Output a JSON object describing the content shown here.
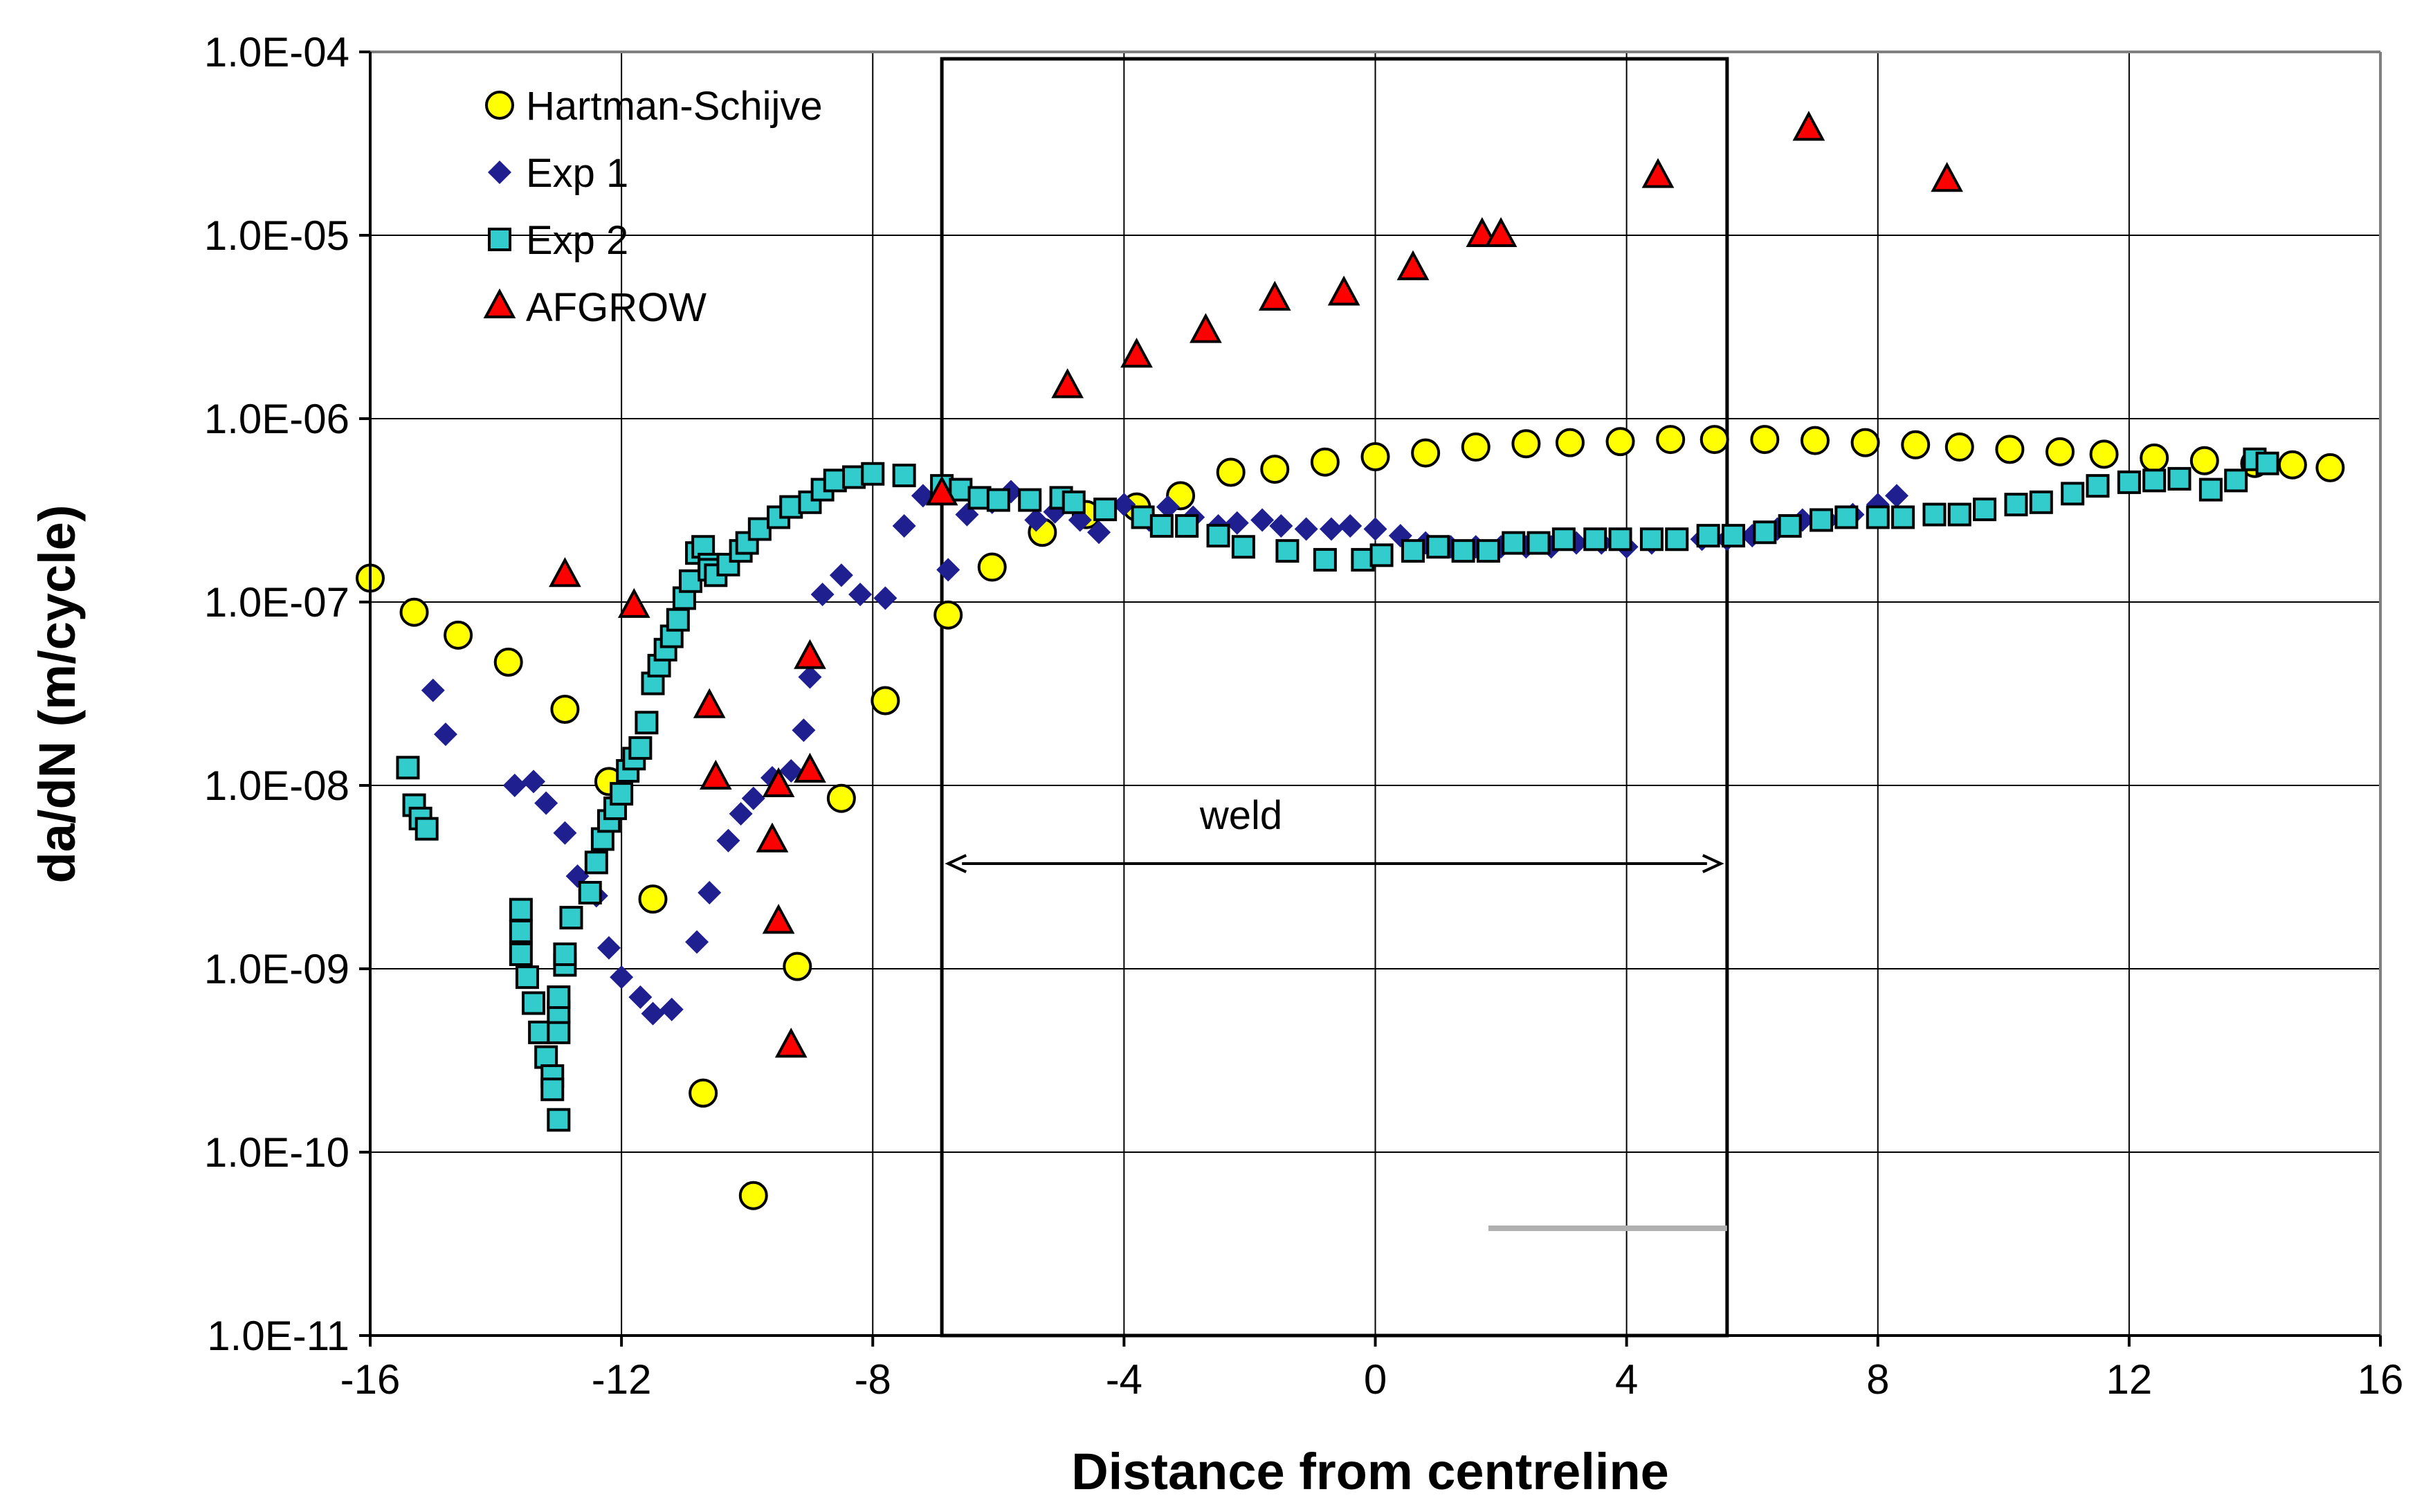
{
  "chart_data": {
    "type": "scatter",
    "title": "",
    "xlabel": "Distance from centreline",
    "ylabel": "da/dN (m/cycle)",
    "xlim": [
      -16,
      16
    ],
    "ylim": [
      1e-11,
      0.0001
    ],
    "yscale": "log",
    "grid": true,
    "legend_position": "top-left",
    "x_ticks": [
      "-16",
      "-12",
      "-8",
      "-4",
      "0",
      "4",
      "8",
      "12",
      "16"
    ],
    "y_ticks": [
      "1.0E-11",
      "1.0E-10",
      "1.0E-09",
      "1.0E-08",
      "1.0E-07",
      "1.0E-06",
      "1.0E-05",
      "1.0E-04"
    ],
    "annotations": {
      "weld_label": "weld",
      "weld_x_range": [
        -6.8,
        5.5
      ],
      "weld_box_x_range": [
        -6.9,
        5.6
      ]
    },
    "series": [
      {
        "name": "Hartman-Schijve",
        "marker": "circle",
        "color": "#ffff00",
        "x": [
          -16,
          -15.3,
          -14.6,
          -13.8,
          -12.9,
          -12.2,
          -11.5,
          -10.7,
          -9.9,
          -9.2,
          -8.5,
          -7.8,
          -6.8,
          -6.1,
          -5.3,
          -4.6,
          -3.8,
          -3.1,
          -2.3,
          -1.6,
          -0.8,
          0,
          0.8,
          1.6,
          2.4,
          3.1,
          3.9,
          4.7,
          5.4,
          6.2,
          7,
          7.8,
          8.6,
          9.3,
          10.1,
          10.9,
          11.6,
          12.4,
          13.2,
          14,
          14.6,
          15.2
        ],
        "y": [
          1.35e-07,
          8.8e-08,
          6.6e-08,
          4.7e-08,
          2.6e-08,
          1.05e-08,
          2.4e-09,
          2.1e-10,
          5.8e-11,
          1.03e-09,
          8.5e-09,
          2.9e-08,
          8.5e-08,
          1.55e-07,
          2.4e-07,
          3e-07,
          3.3e-07,
          3.8e-07,
          5.1e-07,
          5.3e-07,
          5.8e-07,
          6.2e-07,
          6.5e-07,
          7e-07,
          7.3e-07,
          7.4e-07,
          7.5e-07,
          7.7e-07,
          7.7e-07,
          7.7e-07,
          7.6e-07,
          7.4e-07,
          7.2e-07,
          7e-07,
          6.8e-07,
          6.6e-07,
          6.4e-07,
          6.1e-07,
          5.9e-07,
          5.7e-07,
          5.6e-07,
          5.4e-07
        ]
      },
      {
        "name": "Exp 1",
        "marker": "diamond",
        "color": "#1f1f8f",
        "x": [
          -15,
          -14.8,
          -13.7,
          -13.4,
          -13.2,
          -12.9,
          -12.7,
          -12.4,
          -12.2,
          -12,
          -11.7,
          -11.5,
          -11.2,
          -10.8,
          -10.6,
          -10.3,
          -10.1,
          -9.9,
          -9.6,
          -9.3,
          -9.1,
          -9,
          -8.8,
          -8.5,
          -8.2,
          -7.8,
          -7.5,
          -7.2,
          -6.8,
          -6.5,
          -6.1,
          -5.8,
          -5.4,
          -5.1,
          -4.7,
          -4.4,
          -4.0,
          -3.6,
          -3.3,
          -2.9,
          -2.5,
          -2.2,
          -1.8,
          -1.5,
          -1.1,
          -0.7,
          -0.4,
          0,
          0.4,
          0.8,
          1.2,
          1.6,
          2.0,
          2.4,
          2.8,
          3.2,
          3.6,
          4.0,
          4.4,
          4.8,
          5.2,
          5.6,
          6.0,
          6.4,
          6.8,
          7.2,
          7.6,
          8.0,
          8.3
        ],
        "y": [
          3.3e-08,
          1.9e-08,
          1e-08,
          1.05e-08,
          8e-09,
          5.5e-09,
          3.2e-09,
          2.5e-09,
          1.3e-09,
          9e-10,
          7e-10,
          5.7e-10,
          6e-10,
          1.4e-09,
          2.6e-09,
          5e-09,
          7e-09,
          8.5e-09,
          1.1e-08,
          1.2e-08,
          2e-08,
          3.9e-08,
          1.1e-07,
          1.4e-07,
          1.1e-07,
          1.05e-07,
          2.6e-07,
          3.8e-07,
          1.5e-07,
          3e-07,
          3.5e-07,
          4e-07,
          2.8e-07,
          3.1e-07,
          2.8e-07,
          2.4e-07,
          3.4e-07,
          2.8e-07,
          3.3e-07,
          2.9e-07,
          2.6e-07,
          2.7e-07,
          2.8e-07,
          2.6e-07,
          2.5e-07,
          2.5e-07,
          2.6e-07,
          2.5e-07,
          2.3e-07,
          2.1e-07,
          2e-07,
          2e-07,
          2e-07,
          2e-07,
          2e-07,
          2.1e-07,
          2.1e-07,
          2e-07,
          2.1e-07,
          2.2e-07,
          2.2e-07,
          2.2e-07,
          2.3e-07,
          2.5e-07,
          2.8e-07,
          2.8e-07,
          3e-07,
          3.4e-07,
          3.8e-07
        ]
      },
      {
        "name": "Exp 2",
        "marker": "square",
        "color": "#33cccc",
        "x": [
          -15.4,
          -15.3,
          -15.2,
          -15.1,
          -13.6,
          -13.6,
          -13.6,
          -13.5,
          -13.4,
          -13.3,
          -13.2,
          -13.1,
          -13.1,
          -13.0,
          -13.0,
          -13.0,
          -13.0,
          -12.9,
          -12.9,
          -12.8,
          -12.5,
          -12.4,
          -12.3,
          -12.2,
          -12.1,
          -12.0,
          -11.9,
          -11.8,
          -11.7,
          -11.6,
          -11.5,
          -11.4,
          -11.3,
          -11.2,
          -11.1,
          -11.0,
          -10.9,
          -10.8,
          -10.7,
          -10.6,
          -10.6,
          -10.5,
          -10.3,
          -10.1,
          -10.0,
          -9.8,
          -9.5,
          -9.3,
          -9.0,
          -8.8,
          -8.6,
          -8.3,
          -8.0,
          -7.5,
          -6.9,
          -6.6,
          -6.3,
          -6.0,
          -5.5,
          -5.0,
          -4.8,
          -4.3,
          -3.7,
          -3.4,
          -3.0,
          -2.5,
          -2.1,
          -1.4,
          -0.8,
          -0.2,
          0.1,
          0.6,
          1.0,
          1.4,
          1.8,
          2.2,
          2.6,
          3.0,
          3.5,
          3.9,
          4.4,
          4.8,
          5.3,
          5.7,
          6.2,
          6.6,
          7.1,
          7.5,
          8.0,
          8.4,
          8.9,
          9.3,
          9.7,
          10.2,
          10.6,
          11.1,
          11.5,
          12.0,
          12.4,
          12.8,
          13.3,
          13.7,
          14.0,
          14.2
        ],
        "y": [
          1.25e-08,
          7.8e-09,
          6.6e-09,
          5.8e-09,
          2.1e-09,
          1.6e-09,
          1.2e-09,
          9e-10,
          6.5e-10,
          4.5e-10,
          3.3e-10,
          2.6e-10,
          2.2e-10,
          1.5e-10,
          4.5e-10,
          5.8e-10,
          7e-10,
          1.05e-09,
          1.2e-09,
          1.9e-09,
          2.6e-09,
          3.8e-09,
          5.1e-09,
          6.4e-09,
          7.5e-09,
          9e-09,
          1.2e-08,
          1.4e-08,
          1.6e-08,
          2.2e-08,
          3.6e-08,
          4.5e-08,
          5.5e-08,
          6.5e-08,
          8e-08,
          1.05e-07,
          1.3e-07,
          1.85e-07,
          2e-07,
          1.6e-07,
          1.5e-07,
          1.4e-07,
          1.6e-07,
          1.9e-07,
          2.1e-07,
          2.5e-07,
          2.9e-07,
          3.3e-07,
          3.5e-07,
          4.1e-07,
          4.6e-07,
          4.8e-07,
          5e-07,
          4.9e-07,
          4.3e-07,
          4.1e-07,
          3.7e-07,
          3.6e-07,
          3.6e-07,
          3.7e-07,
          3.5e-07,
          3.2e-07,
          2.9e-07,
          2.6e-07,
          2.6e-07,
          2.3e-07,
          2e-07,
          1.9e-07,
          1.7e-07,
          1.7e-07,
          1.8e-07,
          1.9e-07,
          2e-07,
          1.9e-07,
          1.9e-07,
          2.1e-07,
          2.1e-07,
          2.2e-07,
          2.2e-07,
          2.2e-07,
          2.2e-07,
          2.2e-07,
          2.3e-07,
          2.3e-07,
          2.4e-07,
          2.6e-07,
          2.8e-07,
          2.9e-07,
          2.9e-07,
          2.9e-07,
          3e-07,
          3e-07,
          3.2e-07,
          3.4e-07,
          3.5e-07,
          3.9e-07,
          4.3e-07,
          4.5e-07,
          4.6e-07,
          4.7e-07,
          4.1e-07,
          4.6e-07,
          6e-07,
          5.7e-07
        ]
      },
      {
        "name": "AFGROW",
        "marker": "triangle",
        "color": "#ff0000",
        "x": [
          -12.9,
          -11.8,
          -10.6,
          -10.5,
          -9.6,
          -9.5,
          -9.5,
          -9.3,
          -9.0,
          -9.0,
          -6.9,
          -4.9,
          -3.8,
          -2.7,
          -1.6,
          -0.5,
          0.6,
          1.7,
          2.0,
          4.5,
          6.9,
          9.1
        ],
        "y": [
          1.4e-07,
          9.5e-08,
          2.7e-08,
          1.1e-08,
          5e-09,
          1e-08,
          1.8e-09,
          3.8e-10,
          5e-08,
          1.2e-08,
          3.9e-07,
          1.5e-06,
          2.2e-06,
          3e-06,
          4.5e-06,
          4.8e-06,
          6.6e-06,
          1e-05,
          1e-05,
          2.1e-05,
          3.8e-05,
          2e-05
        ]
      }
    ]
  }
}
